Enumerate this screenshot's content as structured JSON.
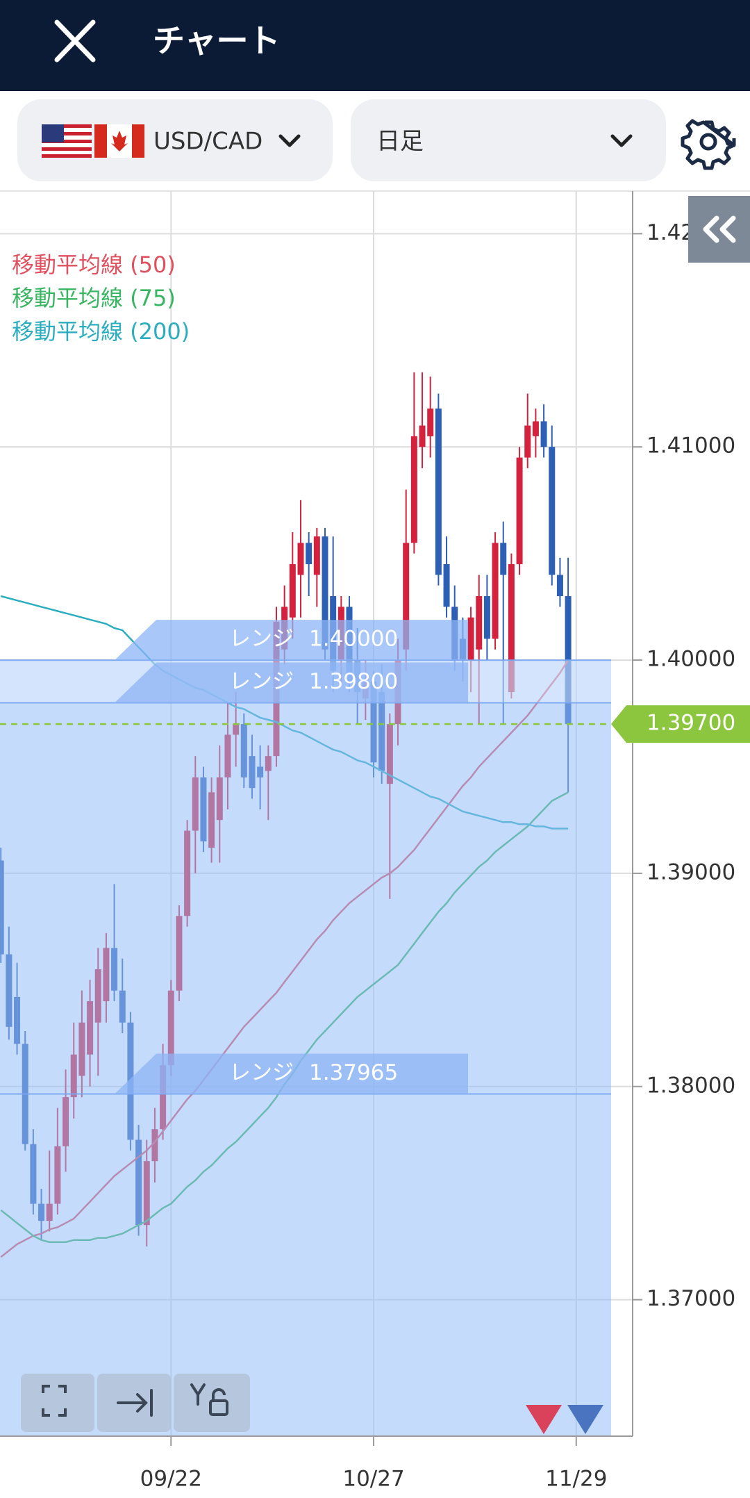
{
  "header": {
    "title": "チャート"
  },
  "toolbar": {
    "symbol": "USD/CAD",
    "timeframe": "日足"
  },
  "chart_data": {
    "type": "candlestick",
    "categories": [
      null,
      null,
      null,
      null,
      null,
      null,
      null,
      null,
      null,
      null,
      null,
      null,
      null,
      null,
      null,
      null,
      null,
      null,
      null,
      null,
      null,
      "09/22",
      null,
      null,
      null,
      null,
      null,
      null,
      null,
      null,
      null,
      null,
      null,
      null,
      null,
      null,
      null,
      null,
      null,
      null,
      null,
      null,
      null,
      null,
      null,
      null,
      "10/27",
      null,
      null,
      null,
      null,
      null,
      null,
      null,
      null,
      null,
      null,
      null,
      null,
      null,
      null,
      null,
      null,
      null,
      null,
      null,
      null,
      null,
      null,
      null,
      null,
      "11/29"
    ],
    "open": [
      1.3906,
      1.3862,
      1.3842,
      1.382,
      1.3773,
      1.3745,
      1.3737,
      1.3745,
      1.3772,
      1.3795,
      1.3805,
      1.3815,
      1.383,
      1.384,
      1.3865,
      1.3845,
      1.383,
      1.3775,
      1.3735,
      1.3765,
      1.378,
      1.381,
      1.3845,
      1.388,
      1.392,
      1.3945,
      1.3912,
      1.3925,
      1.3945,
      1.3965,
      1.397,
      1.3955,
      1.395,
      1.3948,
      1.3955,
      1.4005,
      1.402,
      1.404,
      1.4055,
      1.404,
      1.4058,
      1.403,
      1.4,
      1.4025,
      1.4,
      1.3982,
      1.399,
      1.3985,
      1.3942,
      1.397,
      1.4005,
      1.4055,
      1.41,
      1.4105,
      1.4118,
      1.4045,
      1.4025,
      1.401,
      1.4,
      1.4005,
      1.403,
      1.401,
      1.4055,
      1.3985,
      1.4045,
      1.4095,
      1.4105,
      1.4112,
      1.41,
      1.404,
      1.403,
      null
    ],
    "high": [
      1.3912,
      1.3875,
      1.3858,
      1.3826,
      1.378,
      1.3752,
      1.377,
      1.379,
      1.3808,
      1.383,
      1.3845,
      1.385,
      1.3865,
      1.3872,
      1.3895,
      1.386,
      1.3835,
      1.3782,
      1.3775,
      1.379,
      1.382,
      1.385,
      1.3885,
      1.3925,
      1.3955,
      1.395,
      1.3945,
      1.396,
      1.398,
      1.3985,
      1.3975,
      1.3965,
      1.396,
      1.396,
      1.4025,
      1.4035,
      1.406,
      1.4075,
      1.406,
      1.4062,
      1.4062,
      1.4058,
      1.403,
      1.403,
      1.4015,
      1.4,
      1.3995,
      1.3998,
      1.3975,
      1.401,
      1.408,
      1.4135,
      1.4135,
      1.4133,
      1.4125,
      1.4058,
      1.4035,
      1.402,
      1.4025,
      1.404,
      1.404,
      1.406,
      1.4065,
      1.405,
      1.41,
      1.4125,
      1.4118,
      1.412,
      1.411,
      1.4048,
      1.4048,
      null
    ],
    "low": [
      1.3858,
      1.3822,
      1.3815,
      1.377,
      1.374,
      1.3728,
      1.3732,
      1.374,
      1.376,
      1.3785,
      1.3795,
      1.38,
      1.3805,
      1.383,
      1.384,
      1.3825,
      1.377,
      1.373,
      1.3725,
      1.3755,
      1.3775,
      1.3805,
      1.384,
      1.3875,
      1.39,
      1.391,
      1.3905,
      1.3905,
      1.393,
      1.395,
      1.394,
      1.3935,
      1.393,
      1.3925,
      1.395,
      1.3998,
      1.401,
      1.402,
      1.403,
      1.4025,
      1.4,
      1.3985,
      1.399,
      1.3985,
      1.397,
      1.3972,
      1.3945,
      1.3942,
      1.3888,
      1.396,
      1.3995,
      1.405,
      1.409,
      1.4095,
      1.4035,
      1.402,
      1.3995,
      1.399,
      1.3985,
      1.397,
      1.4,
      1.4005,
      1.397,
      1.3982,
      1.404,
      1.409,
      1.4095,
      1.4095,
      1.4035,
      1.4025,
      1.3938,
      null
    ],
    "close": [
      1.3862,
      1.3828,
      1.382,
      1.3773,
      1.3745,
      1.3737,
      1.3745,
      1.3772,
      1.3795,
      1.3815,
      1.383,
      1.384,
      1.3855,
      1.3865,
      1.3845,
      1.383,
      1.3775,
      1.3735,
      1.3765,
      1.378,
      1.381,
      1.3845,
      1.388,
      1.392,
      1.3945,
      1.3915,
      1.3938,
      1.3945,
      1.3965,
      1.397,
      1.3945,
      1.394,
      1.3945,
      1.3955,
      1.4018,
      1.4025,
      1.4045,
      1.4055,
      1.4045,
      1.4058,
      1.4005,
      1.3995,
      1.4025,
      1.399,
      1.3985,
      1.399,
      1.3952,
      1.3948,
      1.397,
      1.4,
      1.4055,
      1.4105,
      1.411,
      1.4118,
      1.404,
      1.4025,
      1.4,
      1.4,
      1.402,
      1.403,
      1.401,
      1.4055,
      1.404,
      1.4045,
      1.4095,
      1.411,
      1.4112,
      1.41,
      1.404,
      1.403,
      1.397,
      null
    ],
    "up_color": "#d4213d",
    "down_color": "#2d5fb5",
    "series": [
      {
        "name": "移動平均線 (50)",
        "color": "#e0505f",
        "values": [
          1.372,
          1.3723,
          1.3726,
          1.3728,
          1.373,
          1.3731,
          1.3733,
          1.3734,
          1.3736,
          1.3738,
          1.3742,
          1.3746,
          1.375,
          1.3754,
          1.3758,
          1.3761,
          1.3764,
          1.3767,
          1.377,
          1.3774,
          1.3779,
          1.3784,
          1.3789,
          1.3794,
          1.3798,
          1.3803,
          1.3808,
          1.3813,
          1.3818,
          1.3823,
          1.3828,
          1.3832,
          1.3836,
          1.384,
          1.3844,
          1.3849,
          1.3854,
          1.3859,
          1.3864,
          1.3869,
          1.3873,
          1.3878,
          1.3882,
          1.3886,
          1.3889,
          1.3892,
          1.3895,
          1.3898,
          1.39,
          1.3903,
          1.3907,
          1.3911,
          1.3916,
          1.3921,
          1.3926,
          1.3931,
          1.3936,
          1.3941,
          1.3945,
          1.395,
          1.3954,
          1.3958,
          1.3962,
          1.3966,
          1.397,
          1.3974,
          1.3979,
          1.3984,
          1.3989,
          1.3994,
          1.4,
          null
        ]
      },
      {
        "name": "移動平均線 (75)",
        "color": "#38b560",
        "values": [
          1.3742,
          1.3739,
          1.3736,
          1.3733,
          1.373,
          1.3728,
          1.3727,
          1.3727,
          1.3727,
          1.3728,
          1.3728,
          1.3728,
          1.3729,
          1.3729,
          1.373,
          1.3731,
          1.3733,
          1.3735,
          1.3737,
          1.374,
          1.3743,
          1.3745,
          1.3749,
          1.3753,
          1.3756,
          1.376,
          1.3763,
          1.3767,
          1.3771,
          1.3774,
          1.3778,
          1.3782,
          1.3786,
          1.379,
          1.3795,
          1.3801,
          1.3806,
          1.3812,
          1.3817,
          1.3822,
          1.3826,
          1.383,
          1.3834,
          1.3838,
          1.3842,
          1.3845,
          1.3848,
          1.3851,
          1.3854,
          1.3857,
          1.3862,
          1.3867,
          1.3872,
          1.3877,
          1.3882,
          1.3886,
          1.3891,
          1.3895,
          1.3899,
          1.3903,
          1.3906,
          1.391,
          1.3913,
          1.3916,
          1.3919,
          1.3922,
          1.3926,
          1.393,
          1.3934,
          1.3936,
          1.3938,
          null
        ]
      },
      {
        "name": "移動平均線 (200)",
        "color": "#2aaebf",
        "values": [
          1.403,
          1.4029,
          1.4028,
          1.4027,
          1.4026,
          1.4025,
          1.4024,
          1.4023,
          1.4022,
          1.4021,
          1.402,
          1.4019,
          1.4018,
          1.4017,
          1.4015,
          1.4014,
          1.401,
          1.4006,
          1.4002,
          1.3998,
          1.3995,
          1.3993,
          1.3991,
          1.3989,
          1.3987,
          1.3986,
          1.3984,
          1.3982,
          1.398,
          1.3978,
          1.3977,
          1.3975,
          1.3973,
          1.3972,
          1.3971,
          1.3969,
          1.3967,
          1.3966,
          1.3964,
          1.3962,
          1.396,
          1.3958,
          1.3957,
          1.3955,
          1.3953,
          1.3952,
          1.395,
          1.3948,
          1.3946,
          1.3944,
          1.3942,
          1.394,
          1.3938,
          1.3936,
          1.3935,
          1.3933,
          1.3931,
          1.3929,
          1.3928,
          1.3927,
          1.3926,
          1.3925,
          1.3924,
          1.3924,
          1.3923,
          1.3923,
          1.3922,
          1.3922,
          1.3921,
          1.3921,
          1.3921,
          null
        ]
      }
    ],
    "ylim": [
      1.3636,
      1.422
    ],
    "yticks": [
      {
        "value": 1.37,
        "label": "1.37000"
      },
      {
        "value": 1.38,
        "label": "1.38000"
      },
      {
        "value": 1.39,
        "label": "1.39000"
      },
      {
        "value": 1.4,
        "label": "1.40000"
      },
      {
        "value": 1.41,
        "label": "1.41000"
      },
      {
        "value": 1.42,
        "label": "1.42000"
      }
    ],
    "grid": true,
    "ranges": [
      {
        "label": "レンジ",
        "level": {
          "value": 1.4,
          "label": "1.40000"
        }
      },
      {
        "label": "レンジ",
        "level": {
          "value": 1.398,
          "label": "1.39800"
        }
      },
      {
        "label": "レンジ",
        "level": {
          "value": 1.37965,
          "label": "1.37965"
        }
      }
    ],
    "current_price": {
      "value": 1.397,
      "label": "1.39700",
      "color": "#8cc63f"
    }
  }
}
